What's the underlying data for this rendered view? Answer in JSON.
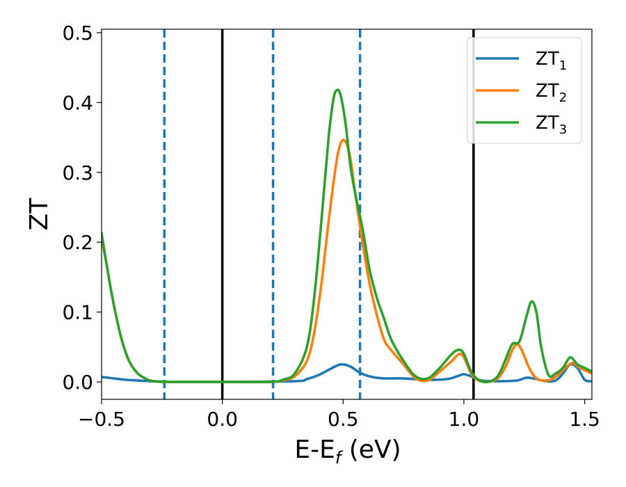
{
  "chart_data": {
    "type": "line",
    "xlabel": "E-E",
    "xlabel_sub": "f",
    "xlabel_unit": "(eV)",
    "ylabel": "ZT",
    "xlim": [
      -0.5,
      1.53
    ],
    "ylim": [
      -0.025,
      0.505
    ],
    "xticks": [
      -0.5,
      0.0,
      0.5,
      1.0,
      1.5
    ],
    "xtick_labels": [
      "−0.5",
      "0.0",
      "0.5",
      "1.0",
      "1.5"
    ],
    "yticks": [
      0.0,
      0.1,
      0.2,
      0.3,
      0.4,
      0.5
    ],
    "ytick_labels": [
      "0.0",
      "0.1",
      "0.2",
      "0.3",
      "0.4",
      "0.5"
    ],
    "grid": false,
    "legend_position": "top-right",
    "vlines_solid": [
      0.0,
      1.04
    ],
    "vlines_dashed": [
      -0.24,
      0.21,
      0.57
    ],
    "vline_solid_color": "#000000",
    "vline_dashed_color": "#1f77b4",
    "series": [
      {
        "name": "ZT",
        "subscript": "1",
        "color": "#1f77b4",
        "x": [
          -0.5,
          -0.45,
          -0.4,
          -0.35,
          -0.3,
          -0.25,
          -0.2,
          0.0,
          0.3,
          0.35,
          0.4,
          0.45,
          0.49,
          0.53,
          0.57,
          0.62,
          0.67,
          0.75,
          0.85,
          0.93,
          0.98,
          1.0,
          1.03,
          1.07,
          1.15,
          1.22,
          1.26,
          1.3,
          1.34,
          1.38,
          1.41,
          1.44,
          1.47,
          1.5,
          1.53
        ],
        "y": [
          0.007,
          0.005,
          0.003,
          0.002,
          0.001,
          0.0005,
          0.0,
          0.0,
          0.001,
          0.004,
          0.01,
          0.019,
          0.025,
          0.022,
          0.013,
          0.007,
          0.005,
          0.005,
          0.003,
          0.004,
          0.009,
          0.011,
          0.008,
          0.002,
          0.001,
          0.002,
          0.006,
          0.004,
          0.001,
          0.002,
          0.012,
          0.025,
          0.02,
          0.003,
          0.001
        ]
      },
      {
        "name": "ZT",
        "subscript": "2",
        "color": "#ff7f0e",
        "x": [
          -0.5,
          -0.48,
          -0.46,
          -0.44,
          -0.42,
          -0.4,
          -0.38,
          -0.35,
          -0.32,
          -0.3,
          -0.27,
          -0.24,
          -0.2,
          0.0,
          0.2,
          0.25,
          0.3,
          0.35,
          0.38,
          0.41,
          0.44,
          0.47,
          0.49,
          0.51,
          0.53,
          0.55,
          0.58,
          0.61,
          0.64,
          0.67,
          0.7,
          0.75,
          0.8,
          0.85,
          0.9,
          0.95,
          0.98,
          1.0,
          1.03,
          1.06,
          1.1,
          1.14,
          1.17,
          1.2,
          1.22,
          1.24,
          1.27,
          1.3,
          1.33,
          1.36,
          1.39,
          1.42,
          1.45,
          1.48,
          1.53
        ],
        "y": [
          0.205,
          0.17,
          0.13,
          0.095,
          0.065,
          0.042,
          0.026,
          0.012,
          0.005,
          0.002,
          0.0005,
          0.0,
          0.0,
          0.0,
          0.0,
          0.002,
          0.008,
          0.03,
          0.07,
          0.14,
          0.23,
          0.31,
          0.342,
          0.344,
          0.32,
          0.27,
          0.2,
          0.14,
          0.095,
          0.06,
          0.045,
          0.025,
          0.005,
          0.002,
          0.015,
          0.03,
          0.04,
          0.035,
          0.012,
          0.002,
          0.0,
          0.005,
          0.02,
          0.045,
          0.054,
          0.045,
          0.02,
          0.005,
          0.002,
          0.003,
          0.01,
          0.02,
          0.027,
          0.02,
          0.012
        ]
      },
      {
        "name": "ZT",
        "subscript": "3",
        "color": "#2ca02c",
        "x": [
          -0.5,
          -0.48,
          -0.46,
          -0.44,
          -0.42,
          -0.4,
          -0.38,
          -0.35,
          -0.32,
          -0.3,
          -0.27,
          -0.24,
          -0.2,
          0.0,
          0.2,
          0.25,
          0.3,
          0.35,
          0.38,
          0.41,
          0.44,
          0.46,
          0.475,
          0.49,
          0.51,
          0.53,
          0.55,
          0.58,
          0.61,
          0.64,
          0.67,
          0.7,
          0.75,
          0.8,
          0.85,
          0.9,
          0.95,
          0.98,
          1.0,
          1.03,
          1.06,
          1.1,
          1.14,
          1.17,
          1.2,
          1.23,
          1.26,
          1.28,
          1.3,
          1.32,
          1.35,
          1.38,
          1.41,
          1.44,
          1.47,
          1.5,
          1.53
        ],
        "y": [
          0.213,
          0.17,
          0.13,
          0.095,
          0.065,
          0.042,
          0.026,
          0.012,
          0.005,
          0.002,
          0.0005,
          0.0,
          0.0,
          0.0,
          0.0,
          0.003,
          0.012,
          0.05,
          0.12,
          0.23,
          0.35,
          0.405,
          0.418,
          0.41,
          0.37,
          0.31,
          0.27,
          0.22,
          0.16,
          0.12,
          0.09,
          0.06,
          0.03,
          0.008,
          0.005,
          0.02,
          0.04,
          0.046,
          0.04,
          0.015,
          0.003,
          0.0,
          0.008,
          0.03,
          0.054,
          0.058,
          0.095,
          0.115,
          0.1,
          0.05,
          0.01,
          0.012,
          0.02,
          0.035,
          0.025,
          0.02,
          0.015
        ]
      }
    ]
  }
}
